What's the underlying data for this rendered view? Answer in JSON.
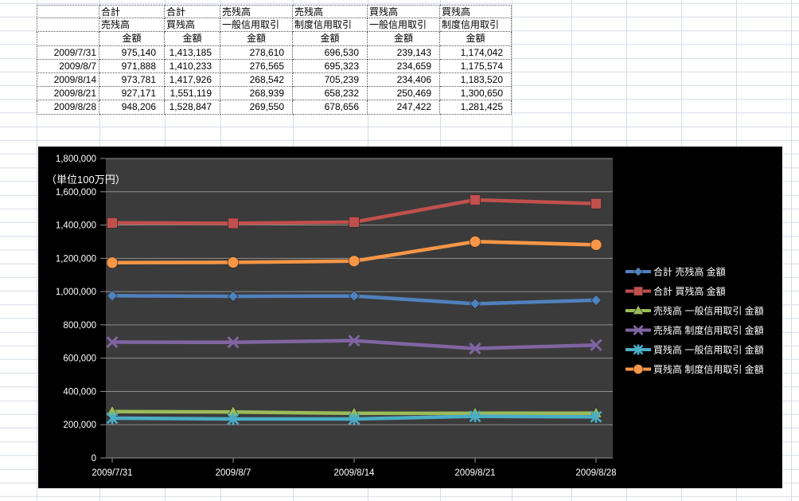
{
  "table": {
    "header_rows": [
      [
        "",
        "合計",
        "合計",
        "売残高",
        "売残高",
        "買残高",
        "買残高"
      ],
      [
        "",
        "売残高",
        "買残高",
        "一般信用取引",
        "制度信用取引",
        "一般信用取引",
        "制度信用取引"
      ],
      [
        "",
        "金額",
        "金額",
        "金額",
        "金額",
        "金額",
        "金額"
      ]
    ],
    "rows": [
      [
        "2009/7/31",
        "975,140",
        "1,413,185",
        "278,610",
        "696,530",
        "239,143",
        "1,174,042"
      ],
      [
        "2009/8/7",
        "971,888",
        "1,410,233",
        "276,565",
        "695,323",
        "234,659",
        "1,175,574"
      ],
      [
        "2009/8/14",
        "973,781",
        "1,417,926",
        "268,542",
        "705,239",
        "234,406",
        "1,183,520"
      ],
      [
        "2009/8/21",
        "927,171",
        "1,551,119",
        "268,939",
        "658,232",
        "250,469",
        "1,300,650"
      ],
      [
        "2009/8/28",
        "948,206",
        "1,528,847",
        "269,550",
        "678,656",
        "247,422",
        "1,281,425"
      ]
    ]
  },
  "chart_data": {
    "type": "line",
    "unit_label": "（単位100万円）",
    "x": [
      "2009/7/31",
      "2009/8/7",
      "2009/8/14",
      "2009/8/21",
      "2009/8/28"
    ],
    "series": [
      {
        "name": "合計 売残高 金額",
        "marker": "diamond",
        "color": "#4F81BD",
        "values": [
          975140,
          971888,
          973781,
          927171,
          948206
        ]
      },
      {
        "name": "合計 買残高 金額",
        "marker": "square",
        "color": "#C0504D",
        "values": [
          1413185,
          1410233,
          1417926,
          1551119,
          1528847
        ]
      },
      {
        "name": "売残高 一般信用取引 金額",
        "marker": "triangle",
        "color": "#9BBB59",
        "values": [
          278610,
          276565,
          268542,
          268939,
          269550
        ]
      },
      {
        "name": "売残高 制度信用取引 金額",
        "marker": "x",
        "color": "#8064A2",
        "values": [
          696530,
          695323,
          705239,
          658232,
          678656
        ]
      },
      {
        "name": "買残高 一般信用取引 金額",
        "marker": "star",
        "color": "#4BACC6",
        "values": [
          239143,
          234659,
          234406,
          250469,
          247422
        ]
      },
      {
        "name": "買残高 制度信用取引 金額",
        "marker": "circle",
        "color": "#F79646",
        "values": [
          1174042,
          1175574,
          1183520,
          1300650,
          1281425
        ]
      }
    ],
    "ylim": [
      0,
      1800000
    ],
    "ytick_step": 200000,
    "grid": true,
    "legend_position": "right",
    "colors": {
      "chart_background": "#000000",
      "plot_background": "#3B3B3B",
      "gridline": "#8F8F8F",
      "text": "#FFFFFF"
    }
  }
}
